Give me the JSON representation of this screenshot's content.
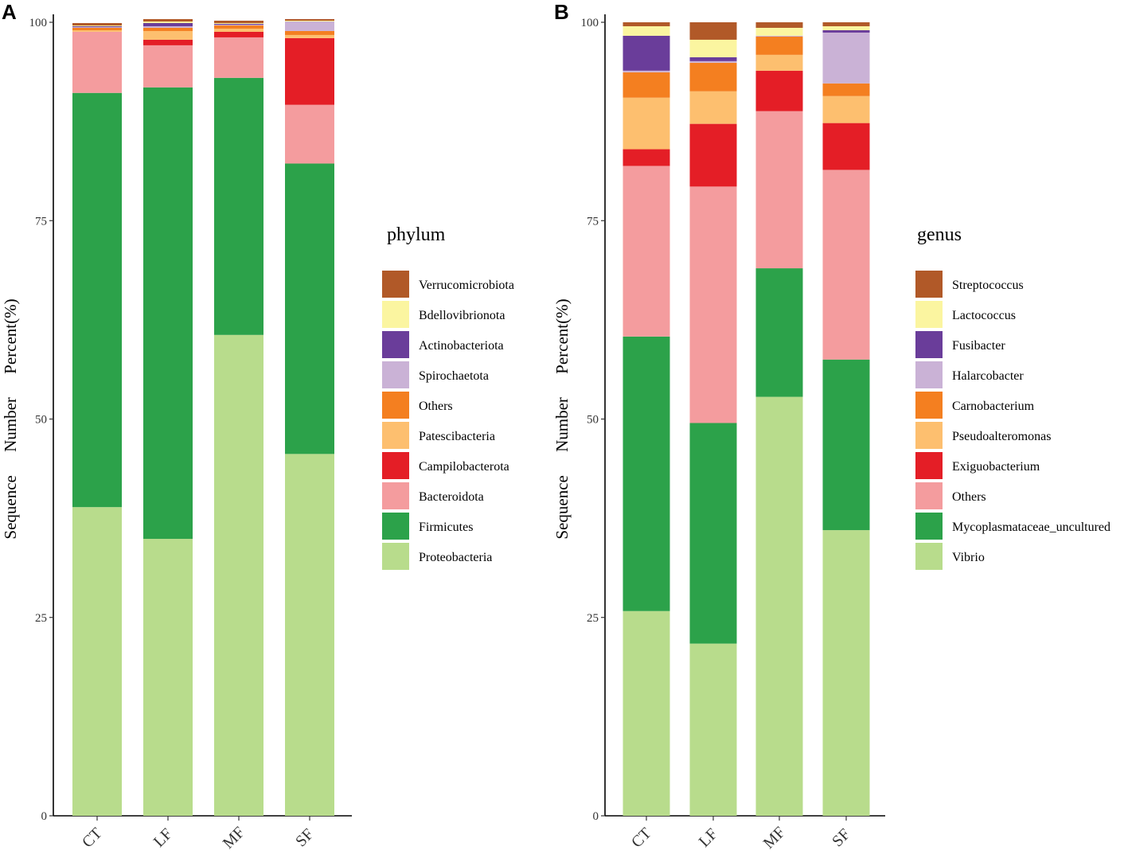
{
  "chart_data": [
    {
      "panel": "A",
      "type": "bar",
      "stacked": true,
      "ylabel": "Sequence Number Percent(%)",
      "ylim": [
        0,
        100
      ],
      "yticks": [
        0,
        25,
        50,
        75,
        100
      ],
      "categories": [
        "CT",
        "LF",
        "MF",
        "SF"
      ],
      "legend_title": "phylum",
      "series": [
        {
          "name": "Proteobacteria",
          "color": "#b8dc8c",
          "values": [
            38.9,
            34.9,
            60.6,
            45.6
          ]
        },
        {
          "name": "Firmicutes",
          "color": "#2ca24a",
          "values": [
            52.2,
            56.9,
            32.4,
            36.6
          ]
        },
        {
          "name": "Bacteroidota",
          "color": "#f49c9e",
          "values": [
            7.7,
            5.3,
            5.1,
            7.4
          ]
        },
        {
          "name": "Campilobacterota",
          "color": "#e41e26",
          "values": [
            0.0,
            0.7,
            0.7,
            8.4
          ]
        },
        {
          "name": "Patescibacteria",
          "color": "#fdbf6f",
          "values": [
            0.2,
            1.1,
            0.4,
            0.4
          ]
        },
        {
          "name": "Others",
          "color": "#f47f20",
          "values": [
            0.3,
            0.4,
            0.4,
            0.5
          ]
        },
        {
          "name": "Spirochaetota",
          "color": "#cab2d6",
          "values": [
            0.1,
            0.2,
            0.1,
            1.2
          ]
        },
        {
          "name": "Actinobacteriota",
          "color": "#6a3d9a",
          "values": [
            0.1,
            0.4,
            0.1,
            0.0
          ]
        },
        {
          "name": "Bdellovibrionota",
          "color": "#fbf5a0",
          "values": [
            0.1,
            0.2,
            0.1,
            0.1
          ]
        },
        {
          "name": "Verrucomicrobiota",
          "color": "#b15928",
          "values": [
            0.3,
            0.3,
            0.3,
            0.2
          ]
        }
      ]
    },
    {
      "panel": "B",
      "type": "bar",
      "stacked": true,
      "ylabel": "Sequence Number Percent(%)",
      "ylim": [
        0,
        100
      ],
      "yticks": [
        0,
        25,
        50,
        75,
        100
      ],
      "categories": [
        "CT",
        "LF",
        "MF",
        "SF"
      ],
      "legend_title": "genus",
      "series": [
        {
          "name": "Vibrio",
          "color": "#b8dc8c",
          "values": [
            25.8,
            21.7,
            52.8,
            36.0
          ]
        },
        {
          "name": "Mycoplasmataceae_uncultured",
          "color": "#2ca24a",
          "values": [
            34.6,
            27.8,
            16.2,
            21.5
          ]
        },
        {
          "name": "Others",
          "color": "#f49c9e",
          "values": [
            21.5,
            29.8,
            19.8,
            23.9
          ]
        },
        {
          "name": "Exiguobacterium",
          "color": "#e41e26",
          "values": [
            2.1,
            7.9,
            5.1,
            5.9
          ]
        },
        {
          "name": "Pseudoalteromonas",
          "color": "#fdbf6f",
          "values": [
            6.5,
            4.1,
            2.0,
            3.4
          ]
        },
        {
          "name": "Carnobacterium",
          "color": "#f47f20",
          "values": [
            3.2,
            3.6,
            2.3,
            1.6
          ]
        },
        {
          "name": "Halarcobacter",
          "color": "#cab2d6",
          "values": [
            0.2,
            0.2,
            0.1,
            6.4
          ]
        },
        {
          "name": "Fusibacter",
          "color": "#6a3d9a",
          "values": [
            4.4,
            0.5,
            0.0,
            0.3
          ]
        },
        {
          "name": "Lactococcus",
          "color": "#fbf5a0",
          "values": [
            1.2,
            2.2,
            1.0,
            0.5
          ]
        },
        {
          "name": "Streptococcus",
          "color": "#b15928",
          "values": [
            0.5,
            2.2,
            0.7,
            0.5
          ]
        }
      ]
    }
  ]
}
